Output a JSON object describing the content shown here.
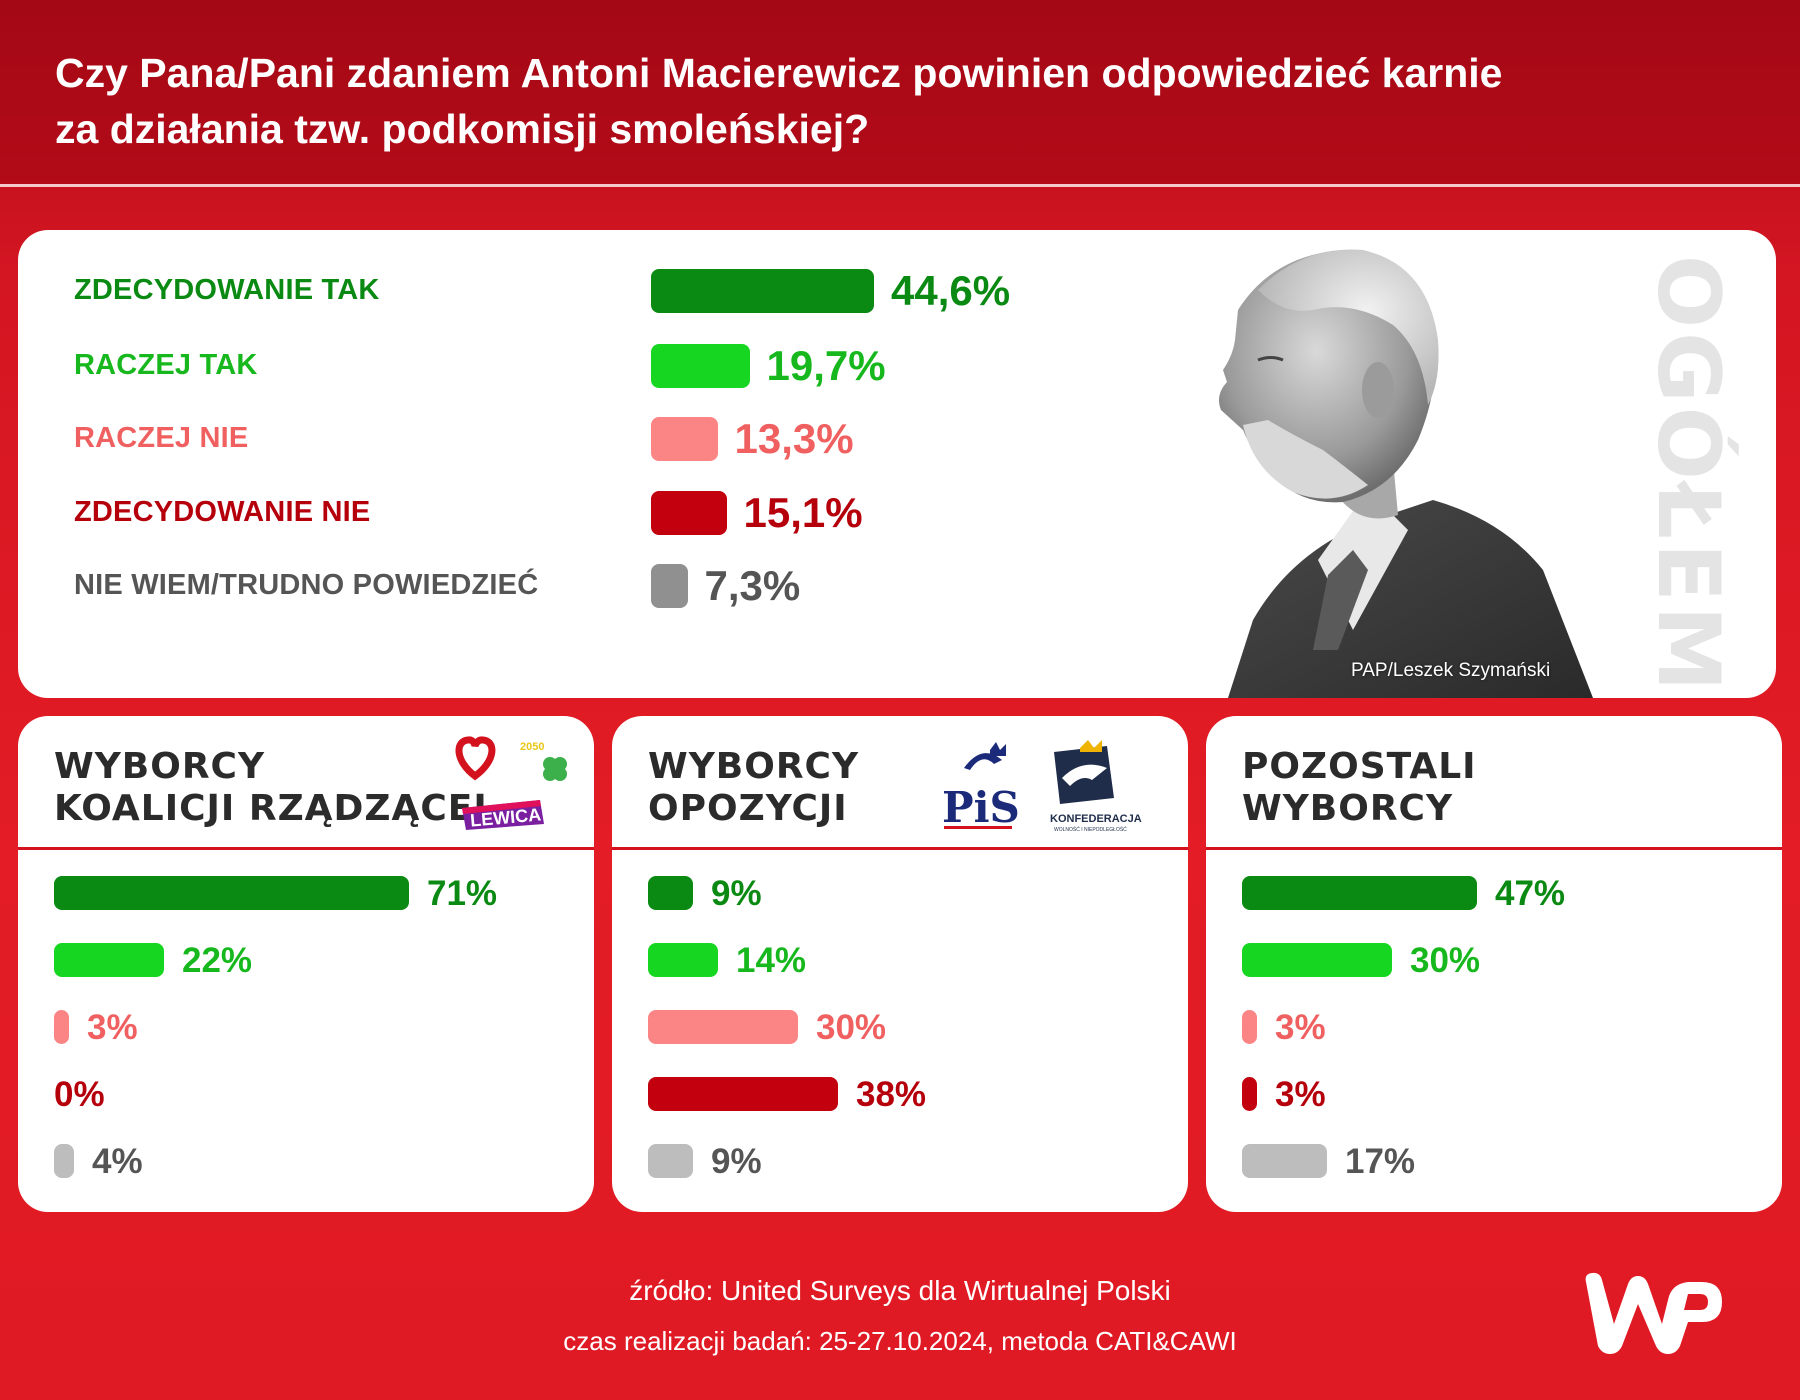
{
  "question": {
    "line1": "Czy Pana/Pani zdaniem Antoni Macierewicz powinien odpowiedzieć karnie",
    "line2": "za działania tzw. podkomisji smoleńskiej?"
  },
  "colors": {
    "strong_yes": "#0a8a12",
    "yes": "#17d622",
    "no": "#fb8484",
    "strong_no": "#c3000e",
    "dont_know": "#909090",
    "dont_know_sub": "#bdbdbd",
    "strong_yes_text": "#0a8a12",
    "yes_text": "#17b81d",
    "no_text": "#f06060",
    "strong_no_text": "#b5000c",
    "dont_know_text": "#555555"
  },
  "photo_credit": "PAP/Leszek Szymański",
  "overall_label": "OGÓŁEM",
  "chart_data": [
    {
      "type": "bar",
      "title": "OGÓŁEM",
      "categories": [
        "ZDECYDOWANIE TAK",
        "RACZEJ TAK",
        "RACZEJ NIE",
        "ZDECYDOWANIE NIE",
        "NIE WIEM/TRUDNO POWIEDZIEĆ"
      ],
      "values": [
        44.6,
        19.7,
        13.3,
        15.1,
        7.3
      ],
      "value_labels": [
        "44,6%",
        "19,7%",
        "13,3%",
        "15,1%",
        "7,3%"
      ],
      "orientation": "horizontal"
    },
    {
      "type": "bar",
      "title_line1": "WYBORCY",
      "title_line2": "KOALICJI RZĄDZĄCEJ",
      "categories": [
        "ZDECYDOWANIE TAK",
        "RACZEJ TAK",
        "RACZEJ NIE",
        "ZDECYDOWANIE NIE",
        "NIE WIEM/TRUDNO POWIEDZIEĆ"
      ],
      "values": [
        71,
        22,
        3,
        0,
        4
      ],
      "value_labels": [
        "71%",
        "22%",
        "3%",
        "0%",
        "4%"
      ],
      "logos": [
        "heart",
        "2050",
        "clover",
        "LEWICA"
      ],
      "orientation": "horizontal"
    },
    {
      "type": "bar",
      "title_line1": "WYBORCY",
      "title_line2": "OPOZYCJI",
      "categories": [
        "ZDECYDOWANIE TAK",
        "RACZEJ TAK",
        "RACZEJ NIE",
        "ZDECYDOWANIE NIE",
        "NIE WIEM/TRUDNO POWIEDZIEĆ"
      ],
      "values": [
        9,
        14,
        30,
        38,
        9
      ],
      "value_labels": [
        "9%",
        "14%",
        "30%",
        "38%",
        "9%"
      ],
      "logos": [
        "PiS",
        "KONFEDERACJA"
      ],
      "orientation": "horizontal"
    },
    {
      "type": "bar",
      "title_line1": "POZOSTALI",
      "title_line2": "WYBORCY",
      "categories": [
        "ZDECYDOWANIE TAK",
        "RACZEJ TAK",
        "RACZEJ NIE",
        "ZDECYDOWANIE NIE",
        "NIE WIEM/TRUDNO POWIEDZIEĆ"
      ],
      "values": [
        47,
        30,
        3,
        3,
        17
      ],
      "value_labels": [
        "47%",
        "30%",
        "3%",
        "3%",
        "17%"
      ],
      "orientation": "horizontal"
    }
  ],
  "logos": {
    "lewica": "LEWICA",
    "pis": "PiS",
    "konfederacja": "KONFEDERACJA",
    "konfederacja_sub": "WOLNOŚĆ I NIEPODLEGŁOŚĆ",
    "2050": "2050",
    "wp": "WP"
  },
  "footer": {
    "source": "źródło: United Surveys dla Wirtualnej Polski",
    "method": "czas realizacji badań: 25-27.10.2024, metoda CATI&CAWI"
  }
}
